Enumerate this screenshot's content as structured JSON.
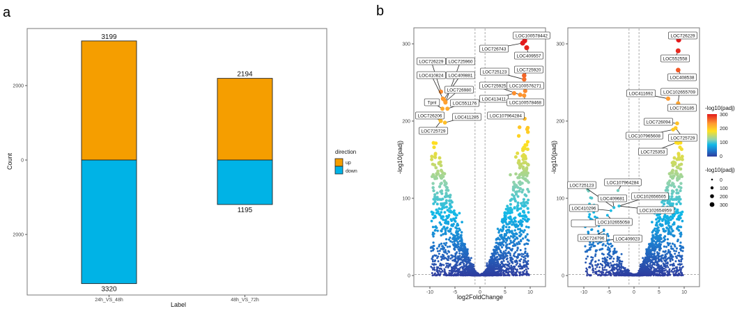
{
  "panel_labels": [
    "a",
    "b"
  ],
  "chart_data": [
    {
      "type": "bar",
      "stacked": true,
      "diverging": true,
      "title": "",
      "xlabel": "Label",
      "ylabel": "Count",
      "categories": [
        "24h_VS_48h",
        "48h_VS_72h"
      ],
      "series": [
        {
          "name": "up",
          "color": "#F59E00",
          "values": [
            3199,
            2194
          ]
        },
        {
          "name": "down",
          "color": "#00B3E6",
          "values": [
            -3320,
            -1195
          ]
        }
      ],
      "data_labels": [
        "3199",
        "3320",
        "2194",
        "1195"
      ],
      "yticks": [
        {
          "value": 2000,
          "label": "2000"
        },
        {
          "value": 0,
          "label": "0"
        },
        {
          "value": -2000,
          "label": "2000"
        }
      ],
      "ylim": [
        -3500,
        3400
      ],
      "legend": {
        "title": "direction",
        "entries": [
          "up",
          "down"
        ],
        "position": "right"
      },
      "grid": false
    },
    {
      "type": "scatter",
      "subtype": "volcano",
      "xlabel": "log2FoldChange",
      "ylabel": "-log10(padj)",
      "xlim": [
        -13,
        13
      ],
      "ylim": [
        -15,
        320
      ],
      "xticks": [
        "-10",
        "-5",
        "0",
        "5",
        "10"
      ],
      "xtick_values": [
        -10,
        -5,
        0,
        5,
        10
      ],
      "yticks": [
        "0",
        "100",
        "200",
        "300"
      ],
      "ytick_values": [
        0,
        100,
        200,
        300
      ],
      "vlines": [
        -1,
        1
      ],
      "hline": 1.3,
      "background_points": {
        "left_count": 900,
        "right_count": 1100
      },
      "labeled_points": [
        {
          "gene": "LOC100578442",
          "x": 8.9,
          "y": 304
        },
        {
          "gene": "LOC726743",
          "x": 8.5,
          "y": 301
        },
        {
          "gene": "LOC409557",
          "x": 9.3,
          "y": 295
        },
        {
          "gene": "LOC725123",
          "x": 8.8,
          "y": 254
        },
        {
          "gene": "LOC725920",
          "x": 8.8,
          "y": 259
        },
        {
          "gene": "LOC725925",
          "x": 8.0,
          "y": 234
        },
        {
          "gene": "LOC100576271",
          "x": 9.0,
          "y": 239
        },
        {
          "gene": "LOC413411",
          "x": 6.8,
          "y": 236
        },
        {
          "gene": "LOC100578468",
          "x": 8.8,
          "y": 233
        },
        {
          "gene": "LOC107964284",
          "x": 8.9,
          "y": 203
        },
        {
          "gene": "LOC726229",
          "x": -7.8,
          "y": 238
        },
        {
          "gene": "LOC725960",
          "x": -6.9,
          "y": 224
        },
        {
          "gene": "LOC410824",
          "x": -7.4,
          "y": 229
        },
        {
          "gene": "LOC409881",
          "x": -7.2,
          "y": 228
        },
        {
          "gene": "LOC726980",
          "x": -6.9,
          "y": 225
        },
        {
          "gene": "Tpnl",
          "x": -7.5,
          "y": 216
        },
        {
          "gene": "LOC551176",
          "x": -6.5,
          "y": 216
        },
        {
          "gene": "LOC726206",
          "x": -7.9,
          "y": 201
        },
        {
          "gene": "LOC411285",
          "x": -7.0,
          "y": 198
        },
        {
          "gene": "LOC725729",
          "x": -7.8,
          "y": 200
        }
      ]
    },
    {
      "type": "scatter",
      "subtype": "volcano",
      "xlabel": "",
      "ylabel": "-log10(padj)",
      "xlim": [
        -13,
        13
      ],
      "ylim": [
        -15,
        320
      ],
      "xticks": [
        "-10",
        "-5",
        "0",
        "5",
        "10"
      ],
      "xtick_values": [
        -10,
        -5,
        0,
        5,
        10
      ],
      "yticks": [
        "0",
        "100",
        "200",
        "300"
      ],
      "ytick_values": [
        0,
        100,
        200,
        300
      ],
      "vlines": [
        -1,
        1
      ],
      "hline": 1.3,
      "background_points": {
        "left_count": 450,
        "right_count": 1100
      },
      "labeled_points": [
        {
          "gene": "LOC726229",
          "x": 8.9,
          "y": 305
        },
        {
          "gene": "LOC552558",
          "x": 8.8,
          "y": 291
        },
        {
          "gene": "LOC408538",
          "x": 8.8,
          "y": 266
        },
        {
          "gene": "LOC411692",
          "x": 6.8,
          "y": 229
        },
        {
          "gene": "LOC102655709",
          "x": 8.8,
          "y": 223
        },
        {
          "gene": "LOC726185",
          "x": 8.8,
          "y": 222
        },
        {
          "gene": "LOC726094",
          "x": 8.6,
          "y": 197
        },
        {
          "gene": "LOC107965608",
          "x": 7.8,
          "y": 189
        },
        {
          "gene": "LOC725729",
          "x": 8.3,
          "y": 191
        },
        {
          "gene": "LOC725353",
          "x": 8.4,
          "y": 172
        },
        {
          "gene": "LOC107964284",
          "x": -3.2,
          "y": 110
        },
        {
          "gene": "LOC725123",
          "x": -4.0,
          "y": 88
        },
        {
          "gene": "LOC409681",
          "x": -4.0,
          "y": 88
        },
        {
          "gene": "LOC102656505",
          "x": -3.0,
          "y": 90
        },
        {
          "gene": "LOC410296",
          "x": -4.6,
          "y": 84
        },
        {
          "gene": "LOC102654959",
          "x": -3.0,
          "y": 90
        },
        {
          "gene": "LOC102655058",
          "x": -5.3,
          "y": 78
        },
        {
          "gene": "LOC724796",
          "x": -6.0,
          "y": 58
        },
        {
          "gene": "LOC409023",
          "x": -5.0,
          "y": 46
        }
      ],
      "legends": {
        "color": {
          "title": "-log10(padj)",
          "ticks": [
            "300",
            "200",
            "100",
            "0"
          ],
          "tick_values": [
            300,
            200,
            100,
            0
          ],
          "colors": [
            "#E31A1C",
            "#FF9A30",
            "#FFE020",
            "#8FD3B0",
            "#10B8E8",
            "#1E78CC",
            "#2E3C9E"
          ]
        },
        "size": {
          "title": "-log10(padj)",
          "ticks": [
            "0",
            "100",
            "200",
            "300"
          ],
          "tick_values": [
            0,
            100,
            200,
            300
          ]
        }
      }
    }
  ]
}
